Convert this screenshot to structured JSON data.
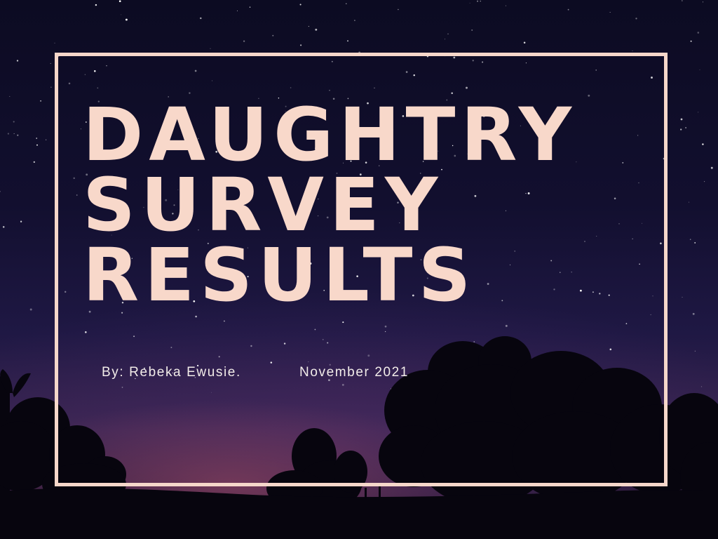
{
  "title": {
    "line1": "DAUGHTRY",
    "line2": "SURVEY",
    "line3": "RESULTS"
  },
  "byline": {
    "author": "By: Rebeka Ewusie.",
    "date": "November 2021"
  },
  "colors": {
    "title": "#f8d8ca",
    "frame": "#f6d7ca",
    "text": "#f2ece9",
    "sky_top": "#0c0b22",
    "horizon_glow": "#96465f"
  }
}
